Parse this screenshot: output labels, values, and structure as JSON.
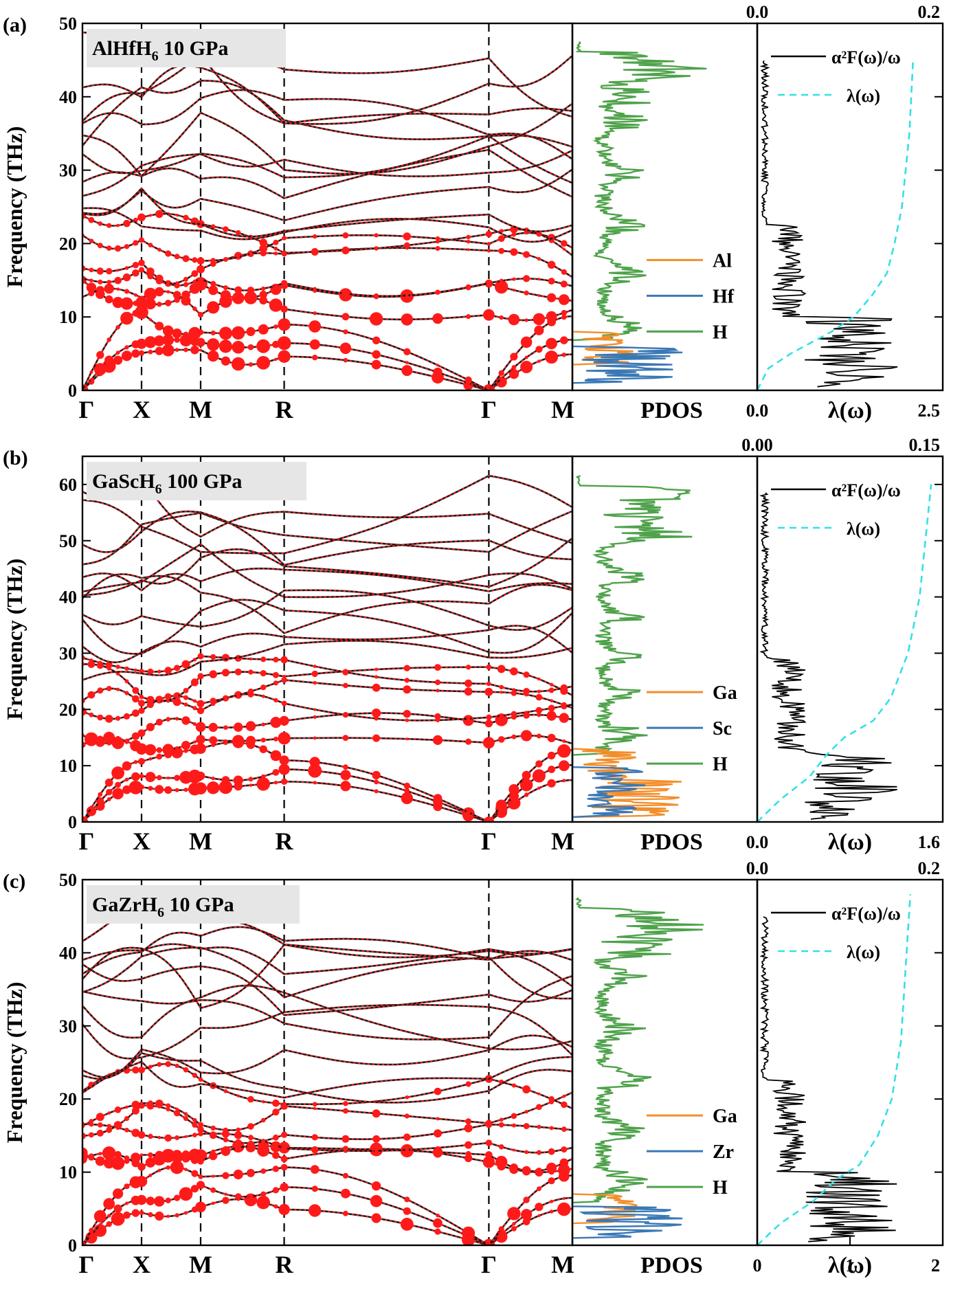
{
  "colors": {
    "axis": "#000000",
    "band_black": "#1a1a1a",
    "band_red": "#ff1a1a",
    "pdos_orange": "#f28e2b",
    "pdos_blue": "#3a78b5",
    "pdos_green": "#4ea24a",
    "lambda_cyan": "#33e0e6",
    "tag_bg": "#e6e6e6"
  },
  "chart_data": [
    {
      "type": "line",
      "panel_label": "(a)",
      "material_tag": {
        "base": "AlHfH",
        "sub": "6",
        "rest": " 10 GPa"
      },
      "ylabel": "Frequency (THz)",
      "ylim": [
        0,
        50
      ],
      "yticks": [
        0,
        10,
        20,
        30,
        40,
        50
      ],
      "kpath": [
        "Γ",
        "X",
        "M",
        "R",
        "Γ",
        "M"
      ],
      "kpos": [
        0,
        0.5,
        1.0,
        1.707,
        3.439,
        4.146
      ],
      "pdos_label": "PDOS",
      "pdos_legend": [
        "Al",
        "Hf",
        "H"
      ],
      "eliashberg": {
        "top_axis_ticks": [
          "0.0",
          "0.2"
        ],
        "top_axis_max": 0.2,
        "bottom_axis_ticks": [
          "0.0",
          "2.5"
        ],
        "bottom_axis_max": 2.5,
        "xlabel": "λ(ω)",
        "legend": [
          "α²F(ω)/ω",
          "λ(ω)"
        ],
        "lambda_curve": [
          [
            0,
            0
          ],
          [
            3,
            0.15
          ],
          [
            5,
            0.45
          ],
          [
            8,
            1.0
          ],
          [
            10,
            1.3
          ],
          [
            13,
            1.55
          ],
          [
            16,
            1.75
          ],
          [
            20,
            1.85
          ],
          [
            25,
            1.95
          ],
          [
            35,
            2.05
          ],
          [
            45,
            2.1
          ]
        ]
      }
    },
    {
      "type": "line",
      "panel_label": "(b)",
      "material_tag": {
        "base": "GaScH",
        "sub": "6",
        "rest": " 100 GPa"
      },
      "ylabel": "Frequency (THz)",
      "ylim": [
        0,
        65
      ],
      "yticks": [
        0,
        10,
        20,
        30,
        40,
        50,
        60
      ],
      "kpath": [
        "Γ",
        "X",
        "M",
        "R",
        "Γ",
        "M"
      ],
      "kpos": [
        0,
        0.5,
        1.0,
        1.707,
        3.439,
        4.146
      ],
      "pdos_label": "PDOS",
      "pdos_legend": [
        "Ga",
        "Sc",
        "H"
      ],
      "eliashberg": {
        "top_axis_ticks": [
          "0.00",
          "0.15"
        ],
        "top_axis_max": 0.15,
        "bottom_axis_ticks": [
          "0.0",
          "1.6"
        ],
        "bottom_axis_max": 1.6,
        "xlabel": "λ(ω)",
        "legend": [
          "α²F(ω)/ω",
          "λ(ω)"
        ],
        "lambda_curve": [
          [
            0,
            0
          ],
          [
            4,
            0.2
          ],
          [
            8,
            0.45
          ],
          [
            12,
            0.6
          ],
          [
            15,
            0.75
          ],
          [
            18,
            1.0
          ],
          [
            22,
            1.15
          ],
          [
            30,
            1.3
          ],
          [
            40,
            1.4
          ],
          [
            50,
            1.45
          ],
          [
            60,
            1.5
          ]
        ]
      }
    },
    {
      "type": "line",
      "panel_label": "(c)",
      "material_tag": {
        "base": "GaZrH",
        "sub": "6",
        "rest": " 10 GPa"
      },
      "ylabel": "Frequency (THz)",
      "ylim": [
        0,
        50
      ],
      "yticks": [
        0,
        10,
        20,
        30,
        40,
        50
      ],
      "kpath": [
        "Γ",
        "X",
        "M",
        "R",
        "Γ",
        "M"
      ],
      "kpos": [
        0,
        0.5,
        1.0,
        1.707,
        3.439,
        4.146
      ],
      "pdos_label": "PDOS",
      "pdos_legend": [
        "Ga",
        "Zr",
        "H"
      ],
      "eliashberg": {
        "top_axis_ticks": [
          "0.0",
          "0.2"
        ],
        "top_axis_max": 0.2,
        "bottom_axis_ticks": [
          "0",
          "1",
          "2"
        ],
        "bottom_axis_max": 2,
        "xlabel": "λ(ω)",
        "legend": [
          "α²F(ω)/ω",
          "λ(ω)"
        ],
        "lambda_curve": [
          [
            0,
            0
          ],
          [
            3,
            0.25
          ],
          [
            6,
            0.6
          ],
          [
            9,
            0.85
          ],
          [
            11,
            1.1
          ],
          [
            15,
            1.3
          ],
          [
            20,
            1.45
          ],
          [
            28,
            1.55
          ],
          [
            38,
            1.6
          ],
          [
            48,
            1.65
          ]
        ]
      }
    }
  ]
}
